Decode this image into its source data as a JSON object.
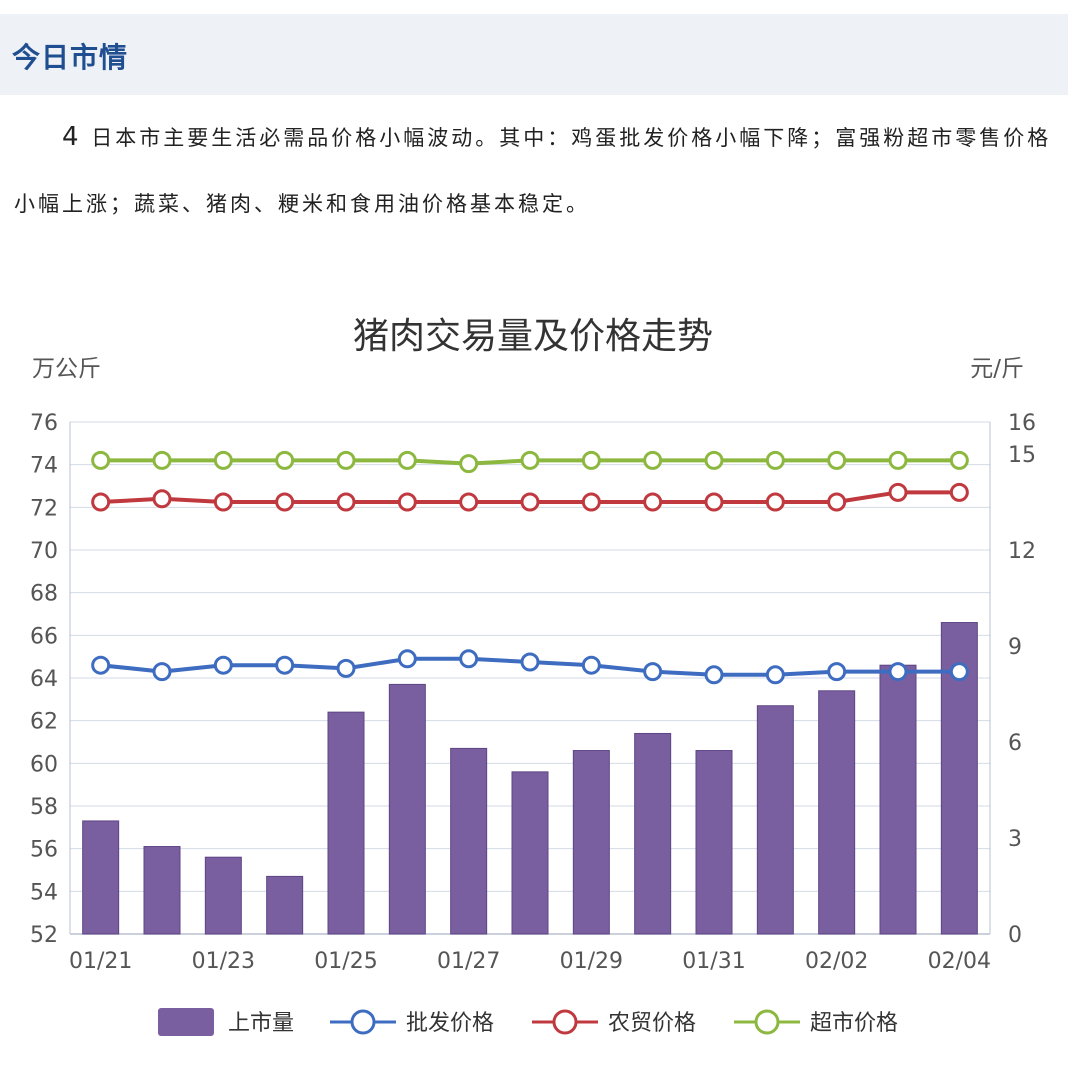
{
  "header": {
    "title": "今日市情"
  },
  "paragraph": {
    "lead_number": "4",
    "text": "日本市主要生活必需品价格小幅波动。其中：鸡蛋批发价格小幅下降；富强粉超市零售价格小幅上涨；蔬菜、猪肉、粳米和食用油价格基本稳定。"
  },
  "colors": {
    "bar": "#7a5fa0",
    "wholesale": "#3d6cc0",
    "market": "#c0393f",
    "supermarket": "#8cb840",
    "grid": "#d3dbe7",
    "header_bg": "#eef1f5",
    "header_text": "#1f4e91"
  },
  "chart_data": {
    "type": "bar+line",
    "title": "猪肉交易量及价格走势",
    "y_left_unit": "万公斤",
    "y_right_unit": "元/斤",
    "y_left_lim": [
      52,
      76
    ],
    "y_left_ticks": [
      "52",
      "54",
      "56",
      "58",
      "60",
      "62",
      "64",
      "66",
      "68",
      "70",
      "72",
      "74",
      "76"
    ],
    "y_right_lim": [
      0,
      16
    ],
    "y_right_ticks": [
      "0",
      "3",
      "6",
      "9",
      "12",
      "15",
      "16"
    ],
    "x_tick_labels": [
      "01/21",
      "01/23",
      "01/25",
      "01/27",
      "01/29",
      "01/31",
      "02/02",
      "02/04"
    ],
    "dates": [
      "01/21",
      "01/22",
      "01/23",
      "01/24",
      "01/25",
      "01/26",
      "01/27",
      "01/28",
      "01/29",
      "01/30",
      "01/31",
      "02/01",
      "02/02",
      "02/03",
      "02/04"
    ],
    "grid": true,
    "legend_position": "bottom",
    "series": [
      {
        "name": "上市量",
        "type": "bar",
        "axis": "left",
        "values": [
          57.3,
          56.1,
          55.6,
          54.7,
          62.4,
          63.7,
          60.7,
          59.6,
          60.6,
          61.4,
          60.6,
          62.7,
          63.4,
          64.6,
          66.6
        ]
      },
      {
        "name": "批发价格",
        "type": "line",
        "axis": "right",
        "values": [
          8.4,
          8.2,
          8.4,
          8.4,
          8.3,
          8.6,
          8.6,
          8.5,
          8.4,
          8.2,
          8.1,
          8.1,
          8.2,
          8.2,
          8.2
        ]
      },
      {
        "name": "农贸价格",
        "type": "line",
        "axis": "right",
        "values": [
          13.5,
          13.6,
          13.5,
          13.5,
          13.5,
          13.5,
          13.5,
          13.5,
          13.5,
          13.5,
          13.5,
          13.5,
          13.5,
          13.8,
          13.8
        ]
      },
      {
        "name": "超市价格",
        "type": "line",
        "axis": "right",
        "values": [
          14.8,
          14.8,
          14.8,
          14.8,
          14.8,
          14.8,
          14.7,
          14.8,
          14.8,
          14.8,
          14.8,
          14.8,
          14.8,
          14.8,
          14.8
        ]
      }
    ]
  }
}
